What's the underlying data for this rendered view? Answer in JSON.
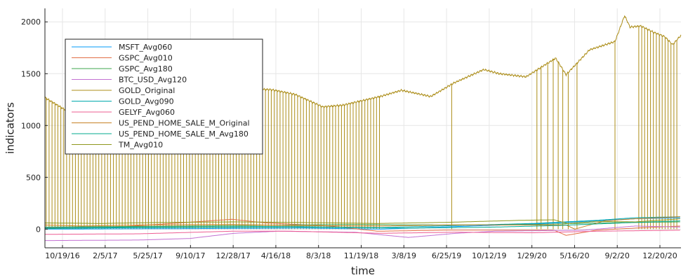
{
  "chart_data": {
    "type": "line",
    "title": "",
    "xlabel": "time",
    "ylabel": "indicators",
    "x_range": [
      "2016-10-19",
      "2020-12-20"
    ],
    "ylim": [
      -180,
      2130
    ],
    "grid": true,
    "legend_placement": "top-left",
    "x_ticks": [
      "10/19/16",
      "2/5/17",
      "5/25/17",
      "9/10/17",
      "12/28/17",
      "4/16/18",
      "8/3/18",
      "11/19/18",
      "3/8/19",
      "6/25/19",
      "10/12/19",
      "1/29/20",
      "5/16/20",
      "9/2/20",
      "12/20/20"
    ],
    "y_ticks": [
      0,
      500,
      1000,
      1500,
      2000
    ],
    "series": [
      {
        "name": "MSFT_Avg060",
        "color": "#009AF9",
        "points": [
          [
            "2016-10-19",
            0
          ],
          [
            "2017-10-01",
            5
          ],
          [
            "2018-07-01",
            10
          ],
          [
            "2019-01-01",
            0
          ],
          [
            "2019-07-01",
            25
          ],
          [
            "2020-01-01",
            50
          ],
          [
            "2020-06-01",
            80
          ],
          [
            "2020-09-01",
            100
          ],
          [
            "2020-12-20",
            110
          ]
        ]
      },
      {
        "name": "GSPC_Avg010",
        "color": "#E26F46",
        "points": [
          [
            "2016-10-19",
            10
          ],
          [
            "2017-05-01",
            25
          ],
          [
            "2018-01-10",
            95
          ],
          [
            "2018-04-01",
            60
          ],
          [
            "2018-09-01",
            30
          ],
          [
            "2018-12-25",
            -20
          ],
          [
            "2019-06-01",
            -10
          ],
          [
            "2020-02-20",
            -10
          ],
          [
            "2020-03-20",
            -60
          ],
          [
            "2020-06-01",
            -10
          ],
          [
            "2020-09-01",
            10
          ],
          [
            "2020-12-20",
            30
          ]
        ]
      },
      {
        "name": "GSPC_Avg180",
        "color": "#3EA44E",
        "points": [
          [
            "2016-10-19",
            20
          ],
          [
            "2017-10-01",
            30
          ],
          [
            "2018-10-01",
            45
          ],
          [
            "2019-06-01",
            40
          ],
          [
            "2020-01-01",
            45
          ],
          [
            "2020-06-01",
            60
          ],
          [
            "2020-12-20",
            70
          ]
        ]
      },
      {
        "name": "BTC_USD_Avg120",
        "color": "#C270D2",
        "points": [
          [
            "2016-10-19",
            -110
          ],
          [
            "2017-06-01",
            -105
          ],
          [
            "2017-10-01",
            -90
          ],
          [
            "2018-01-15",
            -40
          ],
          [
            "2018-05-01",
            -20
          ],
          [
            "2018-11-01",
            -30
          ],
          [
            "2019-03-08",
            -80
          ],
          [
            "2019-07-01",
            -40
          ],
          [
            "2019-10-01",
            -20
          ],
          [
            "2020-05-01",
            -10
          ],
          [
            "2020-09-01",
            30
          ],
          [
            "2020-12-20",
            20
          ]
        ]
      },
      {
        "name": "GOLD_Original",
        "color": "#AC8D18",
        "baseline": 0,
        "drop_interval_days": 7,
        "drop_until": "2018-12-31",
        "drop_dates": [
          "2019-06-20",
          "2020-01-10",
          "2020-01-20",
          "2020-02-05",
          "2020-02-18",
          "2020-03-01",
          "2020-03-12",
          "2020-03-25",
          "2020-04-15",
          "2020-07-15",
          "2020-09-10",
          "2020-09-17",
          "2020-09-24",
          "2020-10-01",
          "2020-10-08",
          "2020-10-15",
          "2020-10-22",
          "2020-10-29",
          "2020-11-05",
          "2020-11-12",
          "2020-11-19",
          "2020-11-26",
          "2020-12-03",
          "2020-12-10"
        ],
        "points": [
          [
            "2016-10-19",
            1270
          ],
          [
            "2016-12-15",
            1130
          ],
          [
            "2017-03-01",
            1250
          ],
          [
            "2017-05-01",
            1230
          ],
          [
            "2017-07-01",
            1240
          ],
          [
            "2017-09-08",
            1350
          ],
          [
            "2017-12-10",
            1250
          ],
          [
            "2018-01-25",
            1360
          ],
          [
            "2018-04-16",
            1345
          ],
          [
            "2018-06-10",
            1300
          ],
          [
            "2018-08-15",
            1180
          ],
          [
            "2018-10-01",
            1195
          ],
          [
            "2018-12-31",
            1280
          ],
          [
            "2019-02-20",
            1340
          ],
          [
            "2019-05-01",
            1280
          ],
          [
            "2019-06-25",
            1410
          ],
          [
            "2019-09-05",
            1540
          ],
          [
            "2019-10-12",
            1500
          ],
          [
            "2019-12-15",
            1470
          ],
          [
            "2020-02-24",
            1650
          ],
          [
            "2020-03-20",
            1490
          ],
          [
            "2020-05-15",
            1730
          ],
          [
            "2020-07-15",
            1810
          ],
          [
            "2020-08-07",
            2060
          ],
          [
            "2020-08-20",
            1950
          ],
          [
            "2020-09-15",
            1960
          ],
          [
            "2020-10-15",
            1900
          ],
          [
            "2020-11-10",
            1860
          ],
          [
            "2020-11-30",
            1780
          ],
          [
            "2020-12-20",
            1870
          ]
        ]
      },
      {
        "name": "GOLD_Avg090",
        "color": "#00A9AD",
        "points": [
          [
            "2016-10-19",
            15
          ],
          [
            "2017-06-01",
            20
          ],
          [
            "2018-06-01",
            25
          ],
          [
            "2019-01-01",
            15
          ],
          [
            "2019-07-01",
            35
          ],
          [
            "2020-01-01",
            55
          ],
          [
            "2020-06-01",
            85
          ],
          [
            "2020-09-01",
            110
          ],
          [
            "2020-12-20",
            120
          ]
        ]
      },
      {
        "name": "GELYF_Avg060",
        "color": "#ED5D92",
        "points": [
          [
            "2016-10-19",
            -50
          ],
          [
            "2017-06-01",
            -45
          ],
          [
            "2018-01-10",
            -20
          ],
          [
            "2018-06-01",
            -20
          ],
          [
            "2019-01-01",
            -40
          ],
          [
            "2019-07-01",
            -30
          ],
          [
            "2020-01-01",
            -35
          ],
          [
            "2020-06-01",
            -20
          ],
          [
            "2020-12-20",
            -10
          ]
        ]
      },
      {
        "name": "US_PEND_HOME_SALE_M_Original",
        "color": "#C68125",
        "points": [
          [
            "2016-10-19",
            40
          ],
          [
            "2017-01-15",
            30
          ],
          [
            "2017-06-01",
            40
          ],
          [
            "2018-01-01",
            45
          ],
          [
            "2018-06-01",
            35
          ],
          [
            "2019-01-01",
            30
          ],
          [
            "2019-06-01",
            40
          ],
          [
            "2020-01-01",
            40
          ],
          [
            "2020-03-20",
            40
          ],
          [
            "2020-04-10",
            0
          ],
          [
            "2020-05-15",
            40
          ],
          [
            "2020-06-20",
            80
          ],
          [
            "2020-09-01",
            100
          ],
          [
            "2020-12-20",
            120
          ]
        ]
      },
      {
        "name": "US_PEND_HOME_SALE_M_Avg180",
        "color": "#00A98D",
        "points": [
          [
            "2016-10-19",
            5
          ],
          [
            "2017-06-01",
            15
          ],
          [
            "2018-06-01",
            20
          ],
          [
            "2019-03-01",
            10
          ],
          [
            "2019-10-01",
            20
          ],
          [
            "2020-03-01",
            35
          ],
          [
            "2020-08-01",
            60
          ],
          [
            "2020-12-20",
            80
          ]
        ]
      },
      {
        "name": "TM_Avg010",
        "color": "#8E971D",
        "points": [
          [
            "2016-10-19",
            60
          ],
          [
            "2017-03-01",
            55
          ],
          [
            "2017-08-01",
            65
          ],
          [
            "2018-01-20",
            70
          ],
          [
            "2018-06-01",
            65
          ],
          [
            "2018-12-25",
            55
          ],
          [
            "2019-06-01",
            65
          ],
          [
            "2019-12-01",
            85
          ],
          [
            "2020-02-20",
            90
          ],
          [
            "2020-03-23",
            55
          ],
          [
            "2020-06-01",
            75
          ],
          [
            "2020-09-01",
            70
          ],
          [
            "2020-12-20",
            100
          ]
        ]
      }
    ]
  }
}
